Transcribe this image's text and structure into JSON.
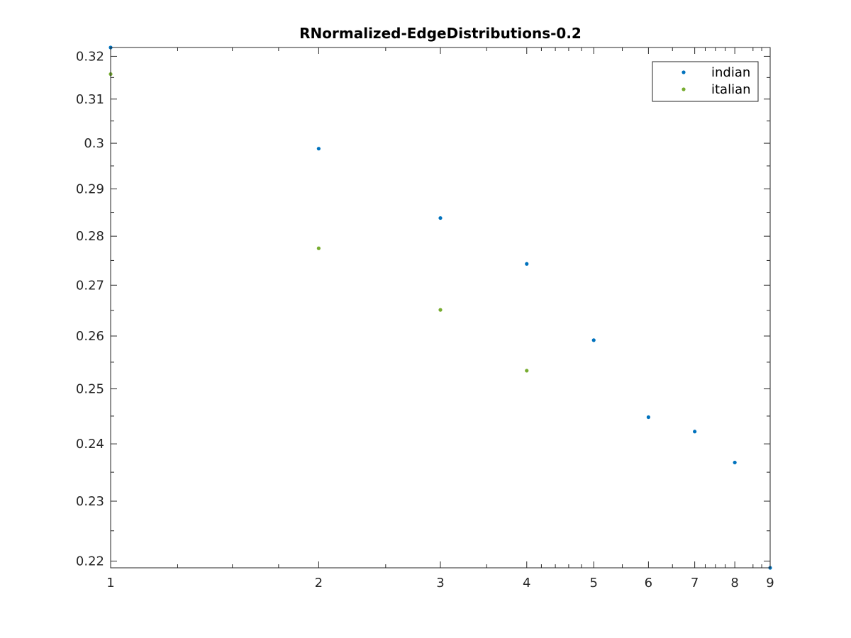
{
  "chart_data": {
    "type": "scatter",
    "title": "RNormalized-EdgeDistributions-0.2",
    "xlabel": "",
    "ylabel": "",
    "xscale": "log",
    "yscale": "log",
    "xlim": [
      1,
      9
    ],
    "ylim": [
      0.2189,
      0.3221
    ],
    "xticks": [
      1,
      2,
      3,
      4,
      5,
      6,
      7,
      8,
      9
    ],
    "xtick_labels": [
      "1",
      "2",
      "3",
      "4",
      "5",
      "6",
      "7",
      "8",
      "9"
    ],
    "yticks": [
      0.22,
      0.23,
      0.24,
      0.25,
      0.26,
      0.27,
      0.28,
      0.29,
      0.3,
      0.31,
      0.32
    ],
    "ytick_labels": [
      "0.22",
      "0.23",
      "0.24",
      "0.25",
      "0.26",
      "0.27",
      "0.28",
      "0.29",
      "0.3",
      "0.31",
      "0.32"
    ],
    "grid": false,
    "legend_position": "top-right",
    "series": [
      {
        "name": "indian",
        "color": "#0072BD",
        "x": [
          1,
          2,
          3,
          4,
          5,
          6,
          7,
          8,
          9
        ],
        "y": [
          0.3221,
          0.2988,
          0.2838,
          0.2743,
          0.2592,
          0.2448,
          0.2422,
          0.2367,
          0.2189
        ]
      },
      {
        "name": "italian",
        "color": "#77AC30",
        "x": [
          1,
          2,
          3,
          4
        ],
        "y": [
          0.3158,
          0.2775,
          0.2651,
          0.2534
        ]
      }
    ]
  }
}
